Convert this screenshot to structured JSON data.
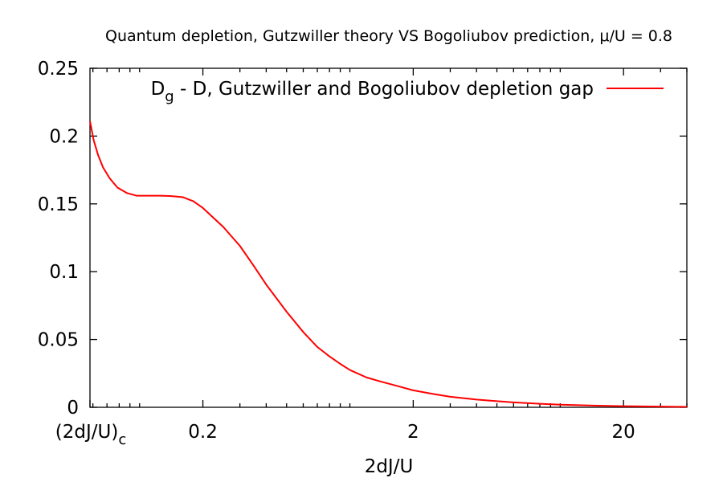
{
  "chart_data": {
    "type": "line",
    "title": "Quantum depletion, Gutzwiller theory VS Bogoliubov prediction, μ/U = 0.8",
    "xlabel": "2dJ/U",
    "ylabel": "",
    "x_scale": "log",
    "xlim": [
      0.0581,
      40
    ],
    "ylim": [
      0,
      0.25
    ],
    "grid": false,
    "legend_position": "top-right",
    "x_tick_labels": [
      {
        "main": "(2dJ/U)",
        "sub": "c",
        "x": 0.0581
      },
      {
        "main": "0.2",
        "sub": "",
        "x": 0.2
      },
      {
        "main": "2",
        "sub": "",
        "x": 2
      },
      {
        "main": "20",
        "sub": "",
        "x": 20
      }
    ],
    "y_ticks": [
      0,
      0.05,
      0.1,
      0.15,
      0.2,
      0.25
    ],
    "y_tick_labels": [
      "0",
      "0.05",
      "0.1",
      "0.15",
      "0.2",
      "0.25"
    ],
    "series": [
      {
        "name_main": "D",
        "name_sub": "g",
        "name_rest": " - D, Gutzwiller and Bogoliubov depletion gap",
        "color": "#ff0000",
        "x": [
          0.0581,
          0.0605,
          0.0635,
          0.067,
          0.072,
          0.0785,
          0.087,
          0.097,
          0.11,
          0.125,
          0.14,
          0.16,
          0.18,
          0.2,
          0.22,
          0.25,
          0.3,
          0.35,
          0.4,
          0.5,
          0.6,
          0.7,
          0.8,
          0.9,
          1.0,
          1.2,
          1.4,
          1.7,
          2.0,
          2.5,
          3.0,
          4.0,
          5.0,
          6.0,
          8.0,
          10.0,
          15.0,
          20.0,
          30.0,
          40.0
        ],
        "y": [
          0.211,
          0.197,
          0.186,
          0.177,
          0.169,
          0.162,
          0.158,
          0.156,
          0.156,
          0.156,
          0.1558,
          0.155,
          0.152,
          0.147,
          0.141,
          0.133,
          0.119,
          0.104,
          0.0905,
          0.0705,
          0.0555,
          0.0445,
          0.0375,
          0.032,
          0.0275,
          0.022,
          0.019,
          0.0155,
          0.0125,
          0.0098,
          0.0078,
          0.0057,
          0.0045,
          0.0036,
          0.0026,
          0.0019,
          0.0012,
          0.0008,
          0.0005,
          0.0003
        ]
      }
    ]
  }
}
